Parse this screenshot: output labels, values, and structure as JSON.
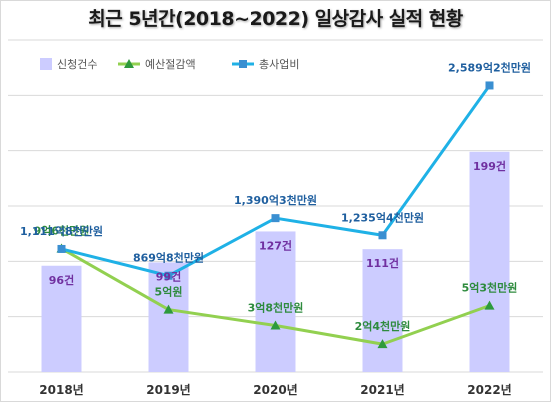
{
  "title": "최근 5년간(2018~2022) 일상감사 실적 현황",
  "colors": {
    "bar": "#ccccff",
    "bar_label": "#7030a0",
    "green_line": "#92d050",
    "green_marker": "#2e9a3c",
    "green_label": "#2e8b3e",
    "blue_line": "#1fb1e6",
    "blue_marker": "#3a8fd1",
    "blue_label": "#1f5f9f",
    "grid": "#d9d9d9"
  },
  "chart_data": {
    "type": "bar",
    "categories": [
      "2018년",
      "2019년",
      "2020년",
      "2021년",
      "2022년"
    ],
    "grid": true,
    "legend_position": "top-left",
    "series": [
      {
        "name": "신청건수",
        "type": "bar",
        "values": [
          96,
          99,
          127,
          111,
          199
        ],
        "labels": [
          "96건",
          "99건",
          "127건",
          "111건",
          "199건"
        ]
      },
      {
        "name": "예산절감액",
        "type": "line",
        "unit": "억원",
        "values": [
          9.6,
          5.0,
          3.8,
          2.4,
          5.3
        ],
        "labels": [
          "9억6천만원",
          "5억원",
          "3억8천만원",
          "2억4천만원",
          "5억3천만원"
        ]
      },
      {
        "name": "총사업비",
        "type": "line",
        "unit": "억원",
        "values": [
          1111.8,
          869.8,
          1390.3,
          1235.4,
          2589.2
        ],
        "labels": [
          "1,111억8천만원",
          "869억8천만원",
          "1,390억3천만원",
          "1,235억4천만원",
          "2,589억2천만원"
        ]
      }
    ]
  }
}
